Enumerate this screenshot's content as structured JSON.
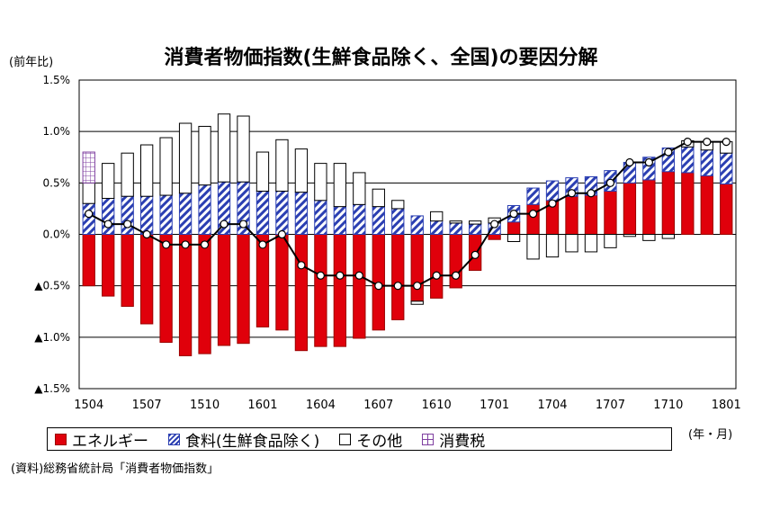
{
  "chart_data": {
    "type": "bar",
    "title": "消費者物価指数(生鮮食品除く、全国)の要因分解",
    "ylabel": "(前年比)",
    "xunit": "(年・月)",
    "ylim": [
      -1.5,
      1.5
    ],
    "yticks": [
      {
        "value": 1.5,
        "label": "1.5%"
      },
      {
        "value": 1.0,
        "label": "1.0%"
      },
      {
        "value": 0.5,
        "label": "0.5%"
      },
      {
        "value": 0.0,
        "label": "0.0%"
      },
      {
        "value": -0.5,
        "label": "▲0.5%"
      },
      {
        "value": -1.0,
        "label": "▲1.0%"
      },
      {
        "value": -1.5,
        "label": "▲1.5%"
      }
    ],
    "categories": [
      "1504",
      "1505",
      "1506",
      "1507",
      "1508",
      "1509",
      "1510",
      "1511",
      "1512",
      "1601",
      "1602",
      "1603",
      "1604",
      "1605",
      "1606",
      "1607",
      "1608",
      "1609",
      "1610",
      "1611",
      "1612",
      "1701",
      "1702",
      "1703",
      "1704",
      "1705",
      "1706",
      "1707",
      "1708",
      "1709",
      "1710",
      "1711",
      "1712",
      "1801"
    ],
    "xtick_labels": [
      "1504",
      "1507",
      "1510",
      "1601",
      "1604",
      "1607",
      "1610",
      "1701",
      "1704",
      "1707",
      "1710",
      "1801"
    ],
    "stacked": true,
    "series": [
      {
        "name": "エネルギー",
        "color": "#e0000b",
        "values": [
          -0.5,
          -0.6,
          -0.7,
          -0.87,
          -1.05,
          -1.18,
          -1.16,
          -1.08,
          -1.06,
          -0.9,
          -0.93,
          -1.13,
          -1.09,
          -1.09,
          -1.01,
          -0.93,
          -0.83,
          -0.65,
          -0.62,
          -0.52,
          -0.35,
          -0.05,
          0.12,
          0.29,
          0.33,
          0.37,
          0.38,
          0.42,
          0.5,
          0.53,
          0.61,
          0.6,
          0.57,
          0.49
        ]
      },
      {
        "name": "食料(生鮮食品除く)",
        "color": "#2b3fb2",
        "values": [
          0.3,
          0.35,
          0.37,
          0.37,
          0.38,
          0.4,
          0.48,
          0.51,
          0.51,
          0.42,
          0.42,
          0.41,
          0.33,
          0.27,
          0.29,
          0.27,
          0.25,
          0.18,
          0.13,
          0.11,
          0.1,
          0.11,
          0.16,
          0.16,
          0.19,
          0.18,
          0.18,
          0.2,
          0.2,
          0.22,
          0.23,
          0.25,
          0.25,
          0.3
        ]
      },
      {
        "name": "その他",
        "color": "#ffffff",
        "values": [
          0.2,
          0.34,
          0.42,
          0.5,
          0.56,
          0.68,
          0.57,
          0.66,
          0.64,
          0.38,
          0.5,
          0.42,
          0.36,
          0.42,
          0.31,
          0.17,
          0.08,
          -0.03,
          0.09,
          0.02,
          0.03,
          0.05,
          -0.07,
          -0.24,
          -0.22,
          -0.17,
          -0.17,
          -0.13,
          -0.02,
          -0.06,
          -0.04,
          0.06,
          0.08,
          0.11
        ]
      },
      {
        "name": "消費税",
        "color": "#7f3fa0",
        "values": [
          0.3,
          0,
          0,
          0,
          0,
          0,
          0,
          0,
          0,
          0,
          0,
          0,
          0,
          0,
          0,
          0,
          0,
          0,
          0,
          0,
          0,
          0,
          0,
          0,
          0,
          0,
          0,
          0,
          0,
          0,
          0,
          0,
          0,
          0
        ]
      }
    ],
    "line": {
      "name": "消費者物価指数(生鮮食品除く)",
      "values": [
        0.2,
        0.1,
        0.1,
        0.0,
        -0.1,
        -0.1,
        -0.1,
        0.1,
        0.1,
        -0.1,
        0.0,
        -0.3,
        -0.4,
        -0.4,
        -0.4,
        -0.5,
        -0.5,
        -0.5,
        -0.4,
        -0.4,
        -0.2,
        0.1,
        0.2,
        0.2,
        0.3,
        0.4,
        0.4,
        0.5,
        0.7,
        0.7,
        0.8,
        0.9,
        0.9,
        0.9
      ]
    },
    "grid": true,
    "legend_position": "bottom"
  },
  "legend": {
    "energy": "エネルギー",
    "food": "食料(生鮮食品除く)",
    "other": "その他",
    "tax": "消費税"
  },
  "source": "(資料)総務省統計局「消費者物価指数」"
}
